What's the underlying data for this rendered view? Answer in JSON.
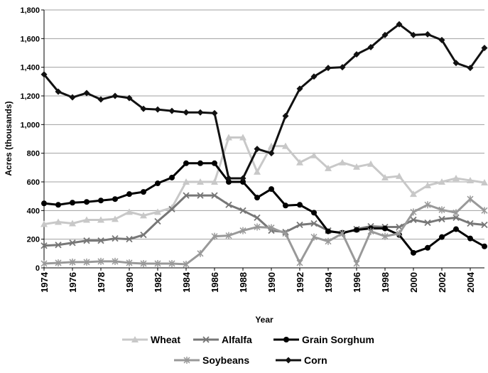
{
  "chart_data": {
    "type": "line",
    "x_label": "Year",
    "y_label": "Acres (thousands)",
    "x": [
      1974,
      1975,
      1976,
      1977,
      1978,
      1979,
      1980,
      1981,
      1982,
      1983,
      1984,
      1985,
      1986,
      1987,
      1988,
      1989,
      1990,
      1991,
      1992,
      1993,
      1994,
      1995,
      1996,
      1997,
      1998,
      1999,
      2000,
      2001,
      2002,
      2003,
      2004,
      2005
    ],
    "xlim": [
      1974,
      2005
    ],
    "xticks": [
      1974,
      1976,
      1978,
      1980,
      1982,
      1984,
      1986,
      1988,
      1990,
      1992,
      1994,
      1996,
      1998,
      2000,
      2002,
      2004
    ],
    "ylim": [
      0,
      1800
    ],
    "yticks": [
      0,
      200,
      400,
      600,
      800,
      {
        "value": 1000,
        "label": "1,000"
      },
      {
        "value": 1200,
        "label": "1,200"
      },
      {
        "value": 1400,
        "label": "1,400"
      },
      {
        "value": 1600,
        "label": "1,600"
      },
      {
        "value": 1800,
        "label": "1,800"
      }
    ],
    "grid": true,
    "series": [
      {
        "name": "Wheat",
        "color": "#c8c8c8",
        "marker": "triangle",
        "values": [
          305,
          320,
          310,
          335,
          335,
          340,
          390,
          365,
          390,
          420,
          600,
          600,
          600,
          910,
          910,
          670,
          850,
          850,
          735,
          785,
          695,
          735,
          705,
          725,
          630,
          640,
          515,
          575,
          600,
          625,
          610,
          595
        ]
      },
      {
        "name": "Alfalfa",
        "color": "#777777",
        "marker": "x",
        "values": [
          155,
          160,
          175,
          190,
          190,
          205,
          200,
          230,
          325,
          410,
          505,
          505,
          505,
          440,
          400,
          350,
          260,
          250,
          300,
          310,
          260,
          240,
          270,
          290,
          285,
          285,
          335,
          315,
          340,
          350,
          310,
          300
        ]
      },
      {
        "name": "Grain Sorghum",
        "color": "#000000",
        "marker": "circle",
        "values": [
          450,
          440,
          455,
          460,
          470,
          480,
          515,
          530,
          590,
          630,
          730,
          730,
          730,
          600,
          600,
          490,
          550,
          435,
          440,
          385,
          255,
          245,
          265,
          275,
          275,
          230,
          105,
          140,
          215,
          270,
          205,
          150
        ]
      },
      {
        "name": "Soybeans",
        "color": "#999999",
        "marker": "star",
        "values": [
          30,
          35,
          40,
          40,
          45,
          45,
          35,
          30,
          30,
          30,
          25,
          100,
          220,
          225,
          260,
          285,
          280,
          240,
          35,
          215,
          185,
          240,
          30,
          255,
          220,
          240,
          390,
          440,
          405,
          385,
          480,
          400
        ]
      },
      {
        "name": "Corn",
        "color": "#111111",
        "marker": "diamond",
        "values": [
          1350,
          1230,
          1190,
          1220,
          1175,
          1200,
          1185,
          1110,
          1105,
          1095,
          1085,
          1085,
          1080,
          625,
          625,
          830,
          800,
          1060,
          1250,
          1335,
          1395,
          1400,
          1490,
          1540,
          1625,
          1700,
          1625,
          1630,
          1590,
          1430,
          1395,
          1535
        ]
      }
    ]
  }
}
